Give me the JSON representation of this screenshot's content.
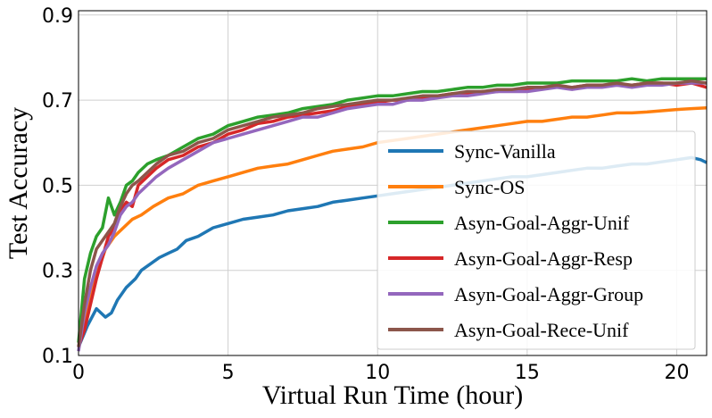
{
  "chart_data": {
    "type": "line",
    "xlabel": "Virtual Run Time (hour)",
    "ylabel": "Test Accuracy",
    "xlim": [
      0,
      21
    ],
    "ylim": [
      0.1,
      0.91
    ],
    "xticks": [
      0,
      5,
      10,
      15,
      20
    ],
    "xtick_labels": [
      "0",
      "5",
      "10",
      "15",
      "20"
    ],
    "yticks": [
      0.1,
      0.3,
      0.5,
      0.7,
      0.9
    ],
    "ytick_labels": [
      "0.1",
      "0.3",
      "0.5",
      "0.7",
      "0.9"
    ],
    "grid": true,
    "legend_position": "center-right",
    "series": [
      {
        "name": "Sync-Vanilla",
        "color": "#1f77b4",
        "x": [
          0,
          0.3,
          0.6,
          0.9,
          1.1,
          1.3,
          1.6,
          1.9,
          2.1,
          2.3,
          2.5,
          2.7,
          3.0,
          3.3,
          3.6,
          4.0,
          4.5,
          5.0,
          5.5,
          6.0,
          6.5,
          7.0,
          7.5,
          8.0,
          8.5,
          9.0,
          9.5,
          10.0,
          10.5,
          11.0,
          11.5,
          12.0,
          12.5,
          13.0,
          13.5,
          14.0,
          14.5,
          15.0,
          15.5,
          16.0,
          16.5,
          17.0,
          17.5,
          18.0,
          18.5,
          19.0,
          19.5,
          20.0,
          20.5,
          20.8,
          21.0
        ],
        "y": [
          0.12,
          0.17,
          0.21,
          0.19,
          0.2,
          0.23,
          0.26,
          0.28,
          0.3,
          0.31,
          0.32,
          0.33,
          0.34,
          0.35,
          0.37,
          0.38,
          0.4,
          0.41,
          0.42,
          0.425,
          0.43,
          0.44,
          0.445,
          0.45,
          0.46,
          0.465,
          0.47,
          0.475,
          0.48,
          0.485,
          0.49,
          0.495,
          0.5,
          0.505,
          0.51,
          0.515,
          0.52,
          0.52,
          0.525,
          0.53,
          0.535,
          0.54,
          0.54,
          0.545,
          0.55,
          0.55,
          0.555,
          0.56,
          0.565,
          0.56,
          0.553
        ]
      },
      {
        "name": "Sync-OS",
        "color": "#ff7f0e",
        "x": [
          0,
          0.3,
          0.6,
          0.9,
          1.2,
          1.5,
          1.8,
          2.1,
          2.5,
          3.0,
          3.5,
          4.0,
          4.5,
          5.0,
          5.5,
          6.0,
          6.5,
          7.0,
          7.5,
          8.0,
          8.5,
          9.0,
          9.5,
          10.0,
          10.5,
          11.0,
          11.5,
          12.0,
          12.5,
          13.0,
          13.5,
          14.0,
          14.5,
          15.0,
          15.5,
          16.0,
          16.5,
          17.0,
          17.5,
          18.0,
          18.5,
          19.0,
          19.5,
          20.0,
          20.5,
          21.0
        ],
        "y": [
          0.12,
          0.2,
          0.29,
          0.35,
          0.38,
          0.4,
          0.42,
          0.43,
          0.45,
          0.47,
          0.48,
          0.5,
          0.51,
          0.52,
          0.53,
          0.54,
          0.545,
          0.55,
          0.56,
          0.57,
          0.58,
          0.585,
          0.59,
          0.6,
          0.605,
          0.61,
          0.615,
          0.62,
          0.625,
          0.63,
          0.635,
          0.64,
          0.645,
          0.65,
          0.65,
          0.655,
          0.66,
          0.66,
          0.665,
          0.67,
          0.67,
          0.672,
          0.675,
          0.678,
          0.68,
          0.682
        ]
      },
      {
        "name": "Asyn-Goal-Aggr-Unif",
        "color": "#2ca02c",
        "x": [
          0,
          0.2,
          0.4,
          0.6,
          0.8,
          1.0,
          1.2,
          1.4,
          1.6,
          1.8,
          2.0,
          2.3,
          2.6,
          3.0,
          3.5,
          4.0,
          4.5,
          5.0,
          5.5,
          6.0,
          6.5,
          7.0,
          7.5,
          8.0,
          8.5,
          9.0,
          9.5,
          10.0,
          10.5,
          11.0,
          11.5,
          12.0,
          12.5,
          13.0,
          13.5,
          14.0,
          14.5,
          15.0,
          15.5,
          16.0,
          16.5,
          17.0,
          17.5,
          18.0,
          18.5,
          19.0,
          19.5,
          20.0,
          20.5,
          21.0
        ],
        "y": [
          0.13,
          0.28,
          0.34,
          0.38,
          0.4,
          0.47,
          0.43,
          0.46,
          0.5,
          0.51,
          0.53,
          0.55,
          0.56,
          0.57,
          0.59,
          0.61,
          0.62,
          0.64,
          0.65,
          0.66,
          0.665,
          0.67,
          0.68,
          0.685,
          0.69,
          0.7,
          0.705,
          0.71,
          0.71,
          0.715,
          0.72,
          0.72,
          0.725,
          0.73,
          0.73,
          0.735,
          0.735,
          0.74,
          0.74,
          0.74,
          0.745,
          0.745,
          0.745,
          0.745,
          0.75,
          0.745,
          0.75,
          0.75,
          0.75,
          0.75
        ]
      },
      {
        "name": "Asyn-Goal-Aggr-Resp",
        "color": "#d62728",
        "x": [
          0,
          0.2,
          0.4,
          0.6,
          0.8,
          1.0,
          1.2,
          1.4,
          1.6,
          1.8,
          2.0,
          2.3,
          2.6,
          3.0,
          3.5,
          4.0,
          4.5,
          5.0,
          5.5,
          6.0,
          6.5,
          7.0,
          7.5,
          8.0,
          8.5,
          9.0,
          9.5,
          10.0,
          10.5,
          11.0,
          11.5,
          12.0,
          12.5,
          13.0,
          13.5,
          14.0,
          14.5,
          15.0,
          15.5,
          16.0,
          16.5,
          17.0,
          17.5,
          18.0,
          18.5,
          19.0,
          19.5,
          20.0,
          20.5,
          21.0
        ],
        "y": [
          0.12,
          0.16,
          0.22,
          0.28,
          0.33,
          0.38,
          0.4,
          0.44,
          0.46,
          0.45,
          0.5,
          0.52,
          0.54,
          0.56,
          0.57,
          0.59,
          0.6,
          0.62,
          0.63,
          0.645,
          0.65,
          0.66,
          0.665,
          0.67,
          0.675,
          0.685,
          0.69,
          0.695,
          0.7,
          0.7,
          0.705,
          0.71,
          0.715,
          0.715,
          0.72,
          0.72,
          0.725,
          0.725,
          0.73,
          0.73,
          0.73,
          0.735,
          0.735,
          0.735,
          0.735,
          0.74,
          0.74,
          0.735,
          0.74,
          0.73
        ]
      },
      {
        "name": "Asyn-Goal-Aggr-Group",
        "color": "#9467bd",
        "x": [
          0,
          0.2,
          0.4,
          0.6,
          0.8,
          1.0,
          1.2,
          1.4,
          1.6,
          1.8,
          2.0,
          2.3,
          2.6,
          3.0,
          3.5,
          4.0,
          4.5,
          5.0,
          5.5,
          6.0,
          6.5,
          7.0,
          7.5,
          8.0,
          8.5,
          9.0,
          9.5,
          10.0,
          10.5,
          11.0,
          11.5,
          12.0,
          12.5,
          13.0,
          13.5,
          14.0,
          14.5,
          15.0,
          15.5,
          16.0,
          16.5,
          17.0,
          17.5,
          18.0,
          18.5,
          19.0,
          19.5,
          20.0,
          20.5,
          21.0
        ],
        "y": [
          0.11,
          0.2,
          0.26,
          0.31,
          0.34,
          0.36,
          0.39,
          0.43,
          0.45,
          0.46,
          0.48,
          0.5,
          0.52,
          0.54,
          0.56,
          0.58,
          0.6,
          0.61,
          0.62,
          0.63,
          0.64,
          0.65,
          0.66,
          0.66,
          0.67,
          0.68,
          0.685,
          0.69,
          0.69,
          0.7,
          0.7,
          0.705,
          0.71,
          0.71,
          0.715,
          0.72,
          0.72,
          0.72,
          0.725,
          0.73,
          0.725,
          0.73,
          0.73,
          0.735,
          0.73,
          0.735,
          0.735,
          0.74,
          0.74,
          0.74
        ]
      },
      {
        "name": "Asyn-Goal-Rece-Unif",
        "color": "#8c564b",
        "x": [
          0,
          0.2,
          0.4,
          0.6,
          0.8,
          1.0,
          1.2,
          1.4,
          1.6,
          1.8,
          2.0,
          2.3,
          2.6,
          3.0,
          3.5,
          4.0,
          4.5,
          5.0,
          5.5,
          6.0,
          6.5,
          7.0,
          7.5,
          8.0,
          8.5,
          9.0,
          9.5,
          10.0,
          10.5,
          11.0,
          11.5,
          12.0,
          12.5,
          13.0,
          13.5,
          14.0,
          14.5,
          15.0,
          15.5,
          16.0,
          16.5,
          17.0,
          17.5,
          18.0,
          18.5,
          19.0,
          19.5,
          20.0,
          20.5,
          21.0
        ],
        "y": [
          0.12,
          0.22,
          0.3,
          0.35,
          0.37,
          0.39,
          0.41,
          0.45,
          0.48,
          0.5,
          0.51,
          0.53,
          0.55,
          0.57,
          0.58,
          0.6,
          0.61,
          0.63,
          0.64,
          0.65,
          0.66,
          0.665,
          0.67,
          0.68,
          0.685,
          0.69,
          0.695,
          0.7,
          0.7,
          0.705,
          0.71,
          0.71,
          0.715,
          0.72,
          0.72,
          0.725,
          0.725,
          0.73,
          0.73,
          0.735,
          0.73,
          0.735,
          0.735,
          0.74,
          0.735,
          0.74,
          0.74,
          0.74,
          0.745,
          0.74
        ]
      }
    ]
  }
}
